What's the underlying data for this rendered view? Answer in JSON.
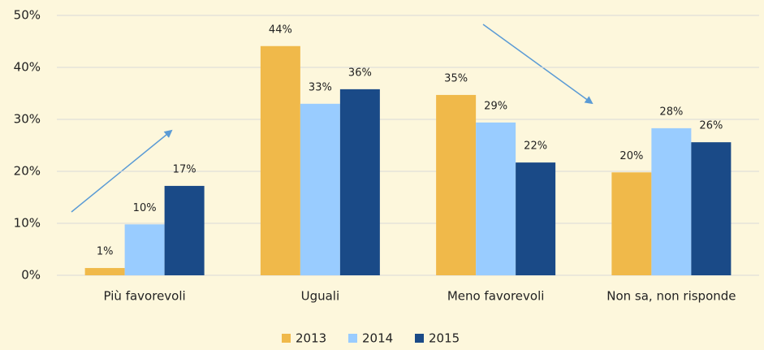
{
  "chart_data": {
    "type": "bar",
    "categories": [
      "Più favorevoli",
      "Uguali",
      "Meno favorevoli",
      "Non sa, non risponde"
    ],
    "series": [
      {
        "name": "2013",
        "color": "#f0b94a",
        "values": [
          1.4,
          44.1,
          34.7,
          19.8
        ],
        "value_labels": [
          "1%",
          "44%",
          "35%",
          "20%"
        ]
      },
      {
        "name": "2014",
        "color": "#99ccff",
        "values": [
          9.8,
          33.0,
          29.4,
          28.3
        ],
        "value_labels": [
          "10%",
          "33%",
          "29%",
          "28%"
        ]
      },
      {
        "name": "2015",
        "color": "#1a4a87",
        "values": [
          17.2,
          35.8,
          21.7,
          25.6
        ],
        "value_labels": [
          "17%",
          "36%",
          "22%",
          "26%"
        ]
      }
    ],
    "ylim": [
      0,
      50
    ],
    "yticks": [
      {
        "value": 0,
        "label": "0%"
      },
      {
        "value": 10,
        "label": "10%"
      },
      {
        "value": 20,
        "label": "20%"
      },
      {
        "value": 30,
        "label": "30%"
      },
      {
        "value": 40,
        "label": "40%"
      },
      {
        "value": 50,
        "label": "50%"
      }
    ],
    "grid": true,
    "legend": "bottom"
  }
}
